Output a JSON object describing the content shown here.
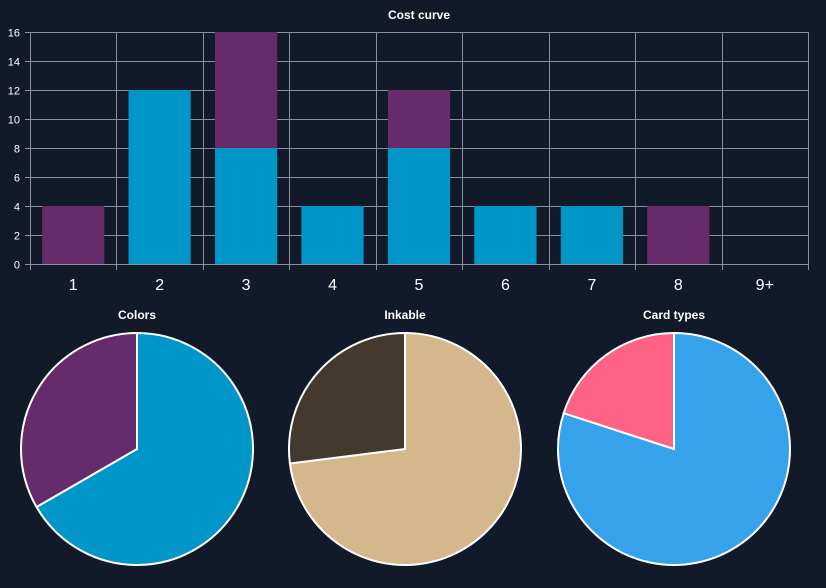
{
  "chart_data": [
    {
      "type": "bar",
      "stacked": true,
      "title": "Cost curve",
      "categories": [
        "1",
        "2",
        "3",
        "4",
        "5",
        "6",
        "7",
        "8",
        "9+"
      ],
      "ylim": [
        0,
        16
      ],
      "yticks": [
        0,
        2,
        4,
        6,
        8,
        10,
        12,
        14,
        16
      ],
      "grid": true,
      "series": [
        {
          "color": "#0096c8",
          "values": [
            0,
            12,
            8,
            4,
            8,
            4,
            4,
            0,
            0
          ]
        },
        {
          "color": "#652b6a",
          "values": [
            4,
            0,
            8,
            0,
            4,
            0,
            0,
            4,
            0
          ]
        }
      ]
    },
    {
      "type": "pie",
      "title": "Colors",
      "slices": [
        {
          "value": 2,
          "color": "#0096c8"
        },
        {
          "value": 1,
          "color": "#652b6a"
        }
      ]
    },
    {
      "type": "pie",
      "title": "Inkable",
      "slices": [
        {
          "value": 73,
          "color": "#d4b78b"
        },
        {
          "value": 27,
          "color": "#43392c"
        }
      ]
    },
    {
      "type": "pie",
      "title": "Card types",
      "slices": [
        {
          "value": 80,
          "color": "#36a2eb"
        },
        {
          "value": 20,
          "color": "#ff6384"
        }
      ]
    }
  ]
}
